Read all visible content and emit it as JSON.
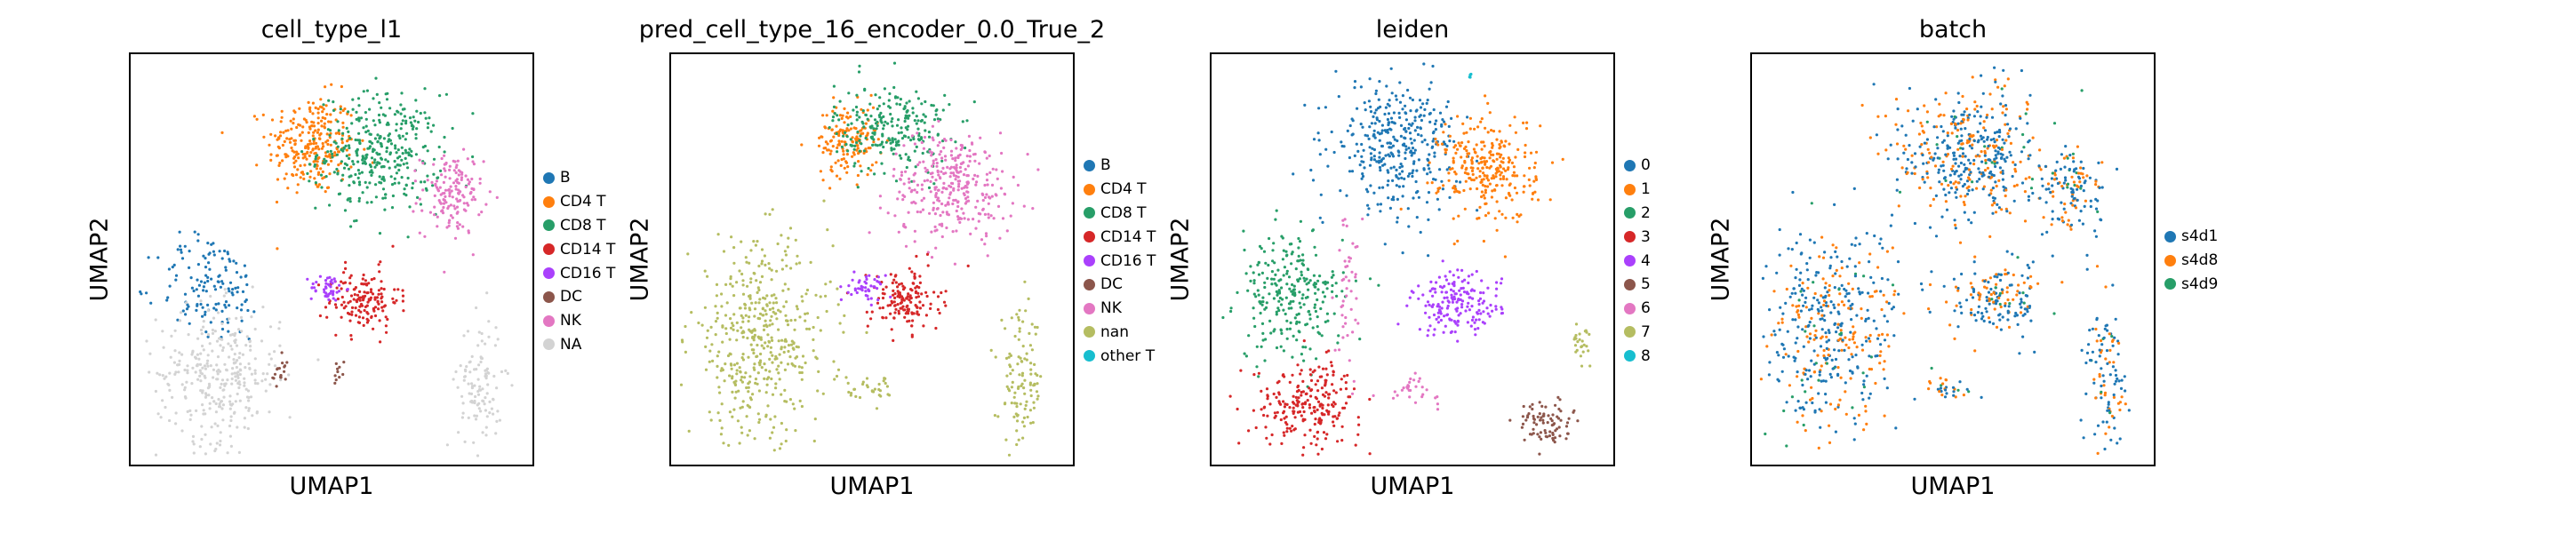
{
  "chart_data": [
    {
      "type": "scatter",
      "title": "cell_type_l1",
      "xlabel": "UMAP1",
      "ylabel": "UMAP2",
      "grid": false,
      "legend_position": "right",
      "legend": [
        {
          "label": "B",
          "color": "#1f77b4"
        },
        {
          "label": "CD4 T",
          "color": "#ff7f0e"
        },
        {
          "label": "CD8 T",
          "color": "#279e68"
        },
        {
          "label": "CD14 T",
          "color": "#d62728"
        },
        {
          "label": "CD16 T",
          "color": "#aa40fc"
        },
        {
          "label": "DC",
          "color": "#8c564b"
        },
        {
          "label": "NK",
          "color": "#e377c2"
        },
        {
          "label": "NA",
          "color": "#d3d3d3"
        }
      ],
      "clusters": [
        {
          "category": "CD4 T",
          "cx": 0.45,
          "cy": 0.78,
          "rx": 0.1,
          "ry": 0.11,
          "n": 260
        },
        {
          "category": "CD8 T",
          "cx": 0.62,
          "cy": 0.76,
          "rx": 0.14,
          "ry": 0.13,
          "n": 360
        },
        {
          "category": "NK",
          "cx": 0.8,
          "cy": 0.66,
          "rx": 0.07,
          "ry": 0.09,
          "n": 150
        },
        {
          "category": "CD14 T",
          "cx": 0.58,
          "cy": 0.4,
          "rx": 0.08,
          "ry": 0.07,
          "n": 150
        },
        {
          "category": "CD16 T",
          "cx": 0.49,
          "cy": 0.43,
          "rx": 0.04,
          "ry": 0.03,
          "n": 45
        },
        {
          "category": "B",
          "cx": 0.2,
          "cy": 0.43,
          "rx": 0.12,
          "ry": 0.12,
          "n": 140
        },
        {
          "category": "NA",
          "cx": 0.22,
          "cy": 0.22,
          "rx": 0.14,
          "ry": 0.15,
          "n": 320
        },
        {
          "category": "NA",
          "cx": 0.87,
          "cy": 0.2,
          "rx": 0.05,
          "ry": 0.15,
          "n": 110
        },
        {
          "category": "DC",
          "cx": 0.37,
          "cy": 0.22,
          "rx": 0.02,
          "ry": 0.04,
          "n": 18
        },
        {
          "category": "DC",
          "cx": 0.52,
          "cy": 0.22,
          "rx": 0.02,
          "ry": 0.03,
          "n": 10
        }
      ]
    },
    {
      "type": "scatter",
      "title": "pred_cell_type_16_encoder_0.0_True_2",
      "xlabel": "UMAP1",
      "ylabel": "UMAP2",
      "grid": false,
      "legend_position": "right",
      "legend": [
        {
          "label": "B",
          "color": "#1f77b4"
        },
        {
          "label": "CD4 T",
          "color": "#ff7f0e"
        },
        {
          "label": "CD8 T",
          "color": "#279e68"
        },
        {
          "label": "CD14 T",
          "color": "#d62728"
        },
        {
          "label": "CD16 T",
          "color": "#aa40fc"
        },
        {
          "label": "DC",
          "color": "#8c564b"
        },
        {
          "label": "NK",
          "color": "#e377c2"
        },
        {
          "label": "nan",
          "color": "#b5bd61"
        },
        {
          "label": "other T",
          "color": "#17becf"
        }
      ],
      "clusters": [
        {
          "category": "CD4 T",
          "cx": 0.44,
          "cy": 0.79,
          "rx": 0.07,
          "ry": 0.08,
          "n": 150
        },
        {
          "category": "CD8 T",
          "cx": 0.55,
          "cy": 0.82,
          "rx": 0.13,
          "ry": 0.1,
          "n": 240
        },
        {
          "category": "NK",
          "cx": 0.7,
          "cy": 0.68,
          "rx": 0.14,
          "ry": 0.12,
          "n": 320
        },
        {
          "category": "CD14 T",
          "cx": 0.58,
          "cy": 0.4,
          "rx": 0.08,
          "ry": 0.07,
          "n": 150
        },
        {
          "category": "CD16 T",
          "cx": 0.49,
          "cy": 0.43,
          "rx": 0.04,
          "ry": 0.03,
          "n": 45
        },
        {
          "category": "nan",
          "cx": 0.22,
          "cy": 0.3,
          "rx": 0.16,
          "ry": 0.22,
          "n": 460
        },
        {
          "category": "nan",
          "cx": 0.87,
          "cy": 0.2,
          "rx": 0.05,
          "ry": 0.15,
          "n": 110
        },
        {
          "category": "nan",
          "cx": 0.5,
          "cy": 0.18,
          "rx": 0.06,
          "ry": 0.03,
          "n": 30
        }
      ]
    },
    {
      "type": "scatter",
      "title": "leiden",
      "xlabel": "UMAP1",
      "ylabel": "UMAP2",
      "grid": false,
      "legend_position": "right",
      "legend": [
        {
          "label": "0",
          "color": "#1f77b4"
        },
        {
          "label": "1",
          "color": "#ff7f0e"
        },
        {
          "label": "2",
          "color": "#279e68"
        },
        {
          "label": "3",
          "color": "#d62728"
        },
        {
          "label": "4",
          "color": "#aa40fc"
        },
        {
          "label": "5",
          "color": "#8c564b"
        },
        {
          "label": "6",
          "color": "#e377c2"
        },
        {
          "label": "7",
          "color": "#b5bd61"
        },
        {
          "label": "8",
          "color": "#17becf"
        }
      ],
      "clusters": [
        {
          "category": "0",
          "cx": 0.46,
          "cy": 0.78,
          "rx": 0.14,
          "ry": 0.14,
          "n": 360
        },
        {
          "category": "1",
          "cx": 0.69,
          "cy": 0.72,
          "rx": 0.11,
          "ry": 0.12,
          "n": 280
        },
        {
          "category": "4",
          "cx": 0.61,
          "cy": 0.39,
          "rx": 0.1,
          "ry": 0.07,
          "n": 180
        },
        {
          "category": "2",
          "cx": 0.2,
          "cy": 0.41,
          "rx": 0.12,
          "ry": 0.14,
          "n": 260
        },
        {
          "category": "3",
          "cx": 0.24,
          "cy": 0.15,
          "rx": 0.12,
          "ry": 0.09,
          "n": 230
        },
        {
          "category": "6",
          "cx": 0.34,
          "cy": 0.45,
          "rx": 0.03,
          "ry": 0.18,
          "n": 45
        },
        {
          "category": "6",
          "cx": 0.5,
          "cy": 0.18,
          "rx": 0.06,
          "ry": 0.03,
          "n": 30
        },
        {
          "category": "7",
          "cx": 0.92,
          "cy": 0.3,
          "rx": 0.02,
          "ry": 0.04,
          "n": 25
        },
        {
          "category": "5",
          "cx": 0.83,
          "cy": 0.1,
          "rx": 0.06,
          "ry": 0.05,
          "n": 80
        },
        {
          "category": "8",
          "cx": 0.64,
          "cy": 0.95,
          "rx": 0.01,
          "ry": 0.01,
          "n": 5
        }
      ]
    },
    {
      "type": "scatter",
      "title": "batch",
      "xlabel": "UMAP1",
      "ylabel": "UMAP2",
      "grid": false,
      "legend_position": "right",
      "legend": [
        {
          "label": "s4d1",
          "color": "#1f77b4"
        },
        {
          "label": "s4d8",
          "color": "#ff7f0e"
        },
        {
          "label": "s4d9",
          "color": "#279e68"
        }
      ],
      "clusters": [
        {
          "category": "mixed",
          "cx": 0.55,
          "cy": 0.76,
          "rx": 0.18,
          "ry": 0.15,
          "n": 480
        },
        {
          "category": "mixed",
          "cx": 0.8,
          "cy": 0.66,
          "rx": 0.07,
          "ry": 0.09,
          "n": 120
        },
        {
          "category": "mixed",
          "cx": 0.61,
          "cy": 0.4,
          "rx": 0.1,
          "ry": 0.08,
          "n": 170
        },
        {
          "category": "mixed",
          "cx": 0.2,
          "cy": 0.33,
          "rx": 0.16,
          "ry": 0.22,
          "n": 460
        },
        {
          "category": "mixed",
          "cx": 0.88,
          "cy": 0.22,
          "rx": 0.05,
          "ry": 0.15,
          "n": 110
        },
        {
          "category": "mixed",
          "cx": 0.5,
          "cy": 0.18,
          "rx": 0.06,
          "ry": 0.03,
          "n": 30
        }
      ]
    }
  ]
}
